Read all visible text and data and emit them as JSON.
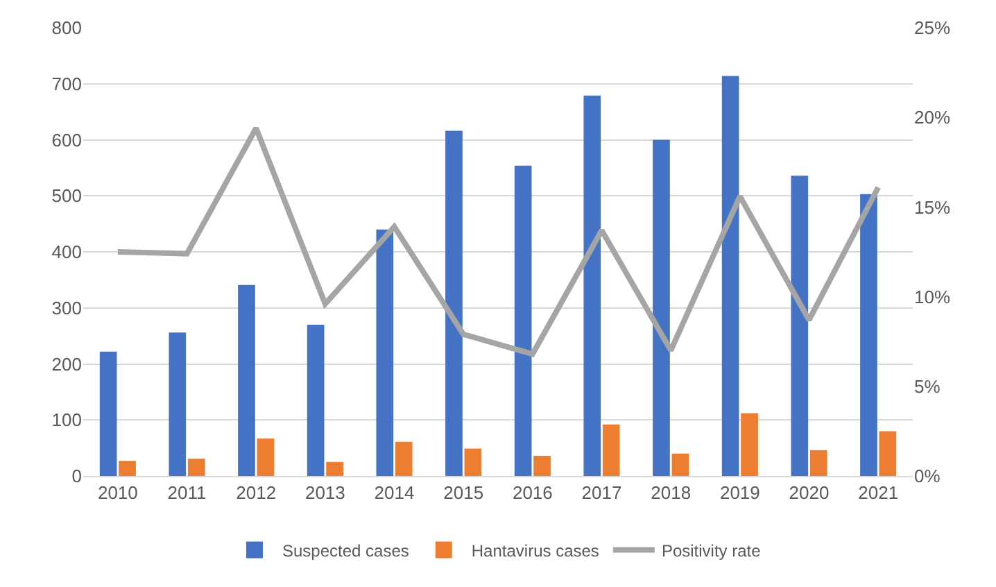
{
  "chart_data": {
    "type": "bar",
    "categories": [
      "2010",
      "2011",
      "2012",
      "2013",
      "2014",
      "2015",
      "2016",
      "2017",
      "2018",
      "2019",
      "2020",
      "2021"
    ],
    "series": [
      {
        "name": "Suspected cases",
        "color": "#4472c4",
        "values": [
          222,
          256,
          341,
          270,
          440,
          616,
          554,
          679,
          600,
          714,
          536,
          503
        ]
      },
      {
        "name": "Hantavirus cases",
        "color": "#ed7d31",
        "values": [
          27,
          31,
          67,
          25,
          61,
          49,
          36,
          92,
          40,
          112,
          46,
          80
        ]
      },
      {
        "name": "Positivity rate",
        "type": "line",
        "axis": "y2",
        "color": "#a5a5a5",
        "marker": "none",
        "values": [
          12.5,
          12.4,
          19.4,
          9.6,
          13.9,
          7.9,
          6.8,
          13.7,
          7.0,
          15.6,
          8.7,
          16.1
        ]
      }
    ],
    "ylim": [
      0,
      800
    ],
    "yticks": [
      0,
      100,
      200,
      300,
      400,
      500,
      600,
      700,
      800
    ],
    "y2lim": [
      0,
      25
    ],
    "y2ticks": [
      {
        "value": 0,
        "label": "0%"
      },
      {
        "value": 5,
        "label": "5%"
      },
      {
        "value": 10,
        "label": "10%"
      },
      {
        "value": 15,
        "label": "15%"
      },
      {
        "value": 20,
        "label": "20%"
      },
      {
        "value": 25,
        "label": "25%"
      }
    ],
    "grid": "y",
    "legend": "bottom"
  }
}
